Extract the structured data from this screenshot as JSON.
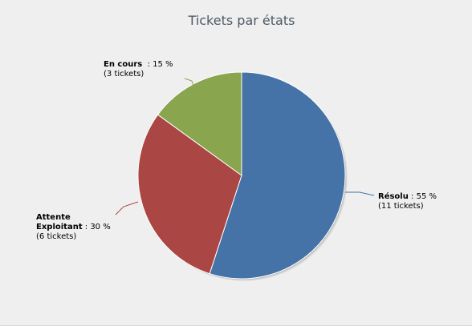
{
  "chart_data": {
    "type": "pie",
    "title": "Tickets par états",
    "slices": [
      {
        "name": "Résolu",
        "percent": 55,
        "value": 11,
        "color": "#4572a7",
        "name_lines": [
          "Résolu"
        ],
        "pct_text": " : 55 %",
        "count_text": "(11 tickets)"
      },
      {
        "name": "Attente Exploitant",
        "percent": 30,
        "value": 6,
        "color": "#aa4643",
        "name_lines": [
          "Attente",
          "Exploitant"
        ],
        "pct_text": " : 30 %",
        "count_text": "(6 tickets)"
      },
      {
        "name": "En cours",
        "percent": 15,
        "value": 3,
        "color": "#89a54e",
        "name_lines": [
          "En cours"
        ],
        "pct_text": "  : 15 %",
        "count_text": "(3 tickets)"
      }
    ]
  }
}
